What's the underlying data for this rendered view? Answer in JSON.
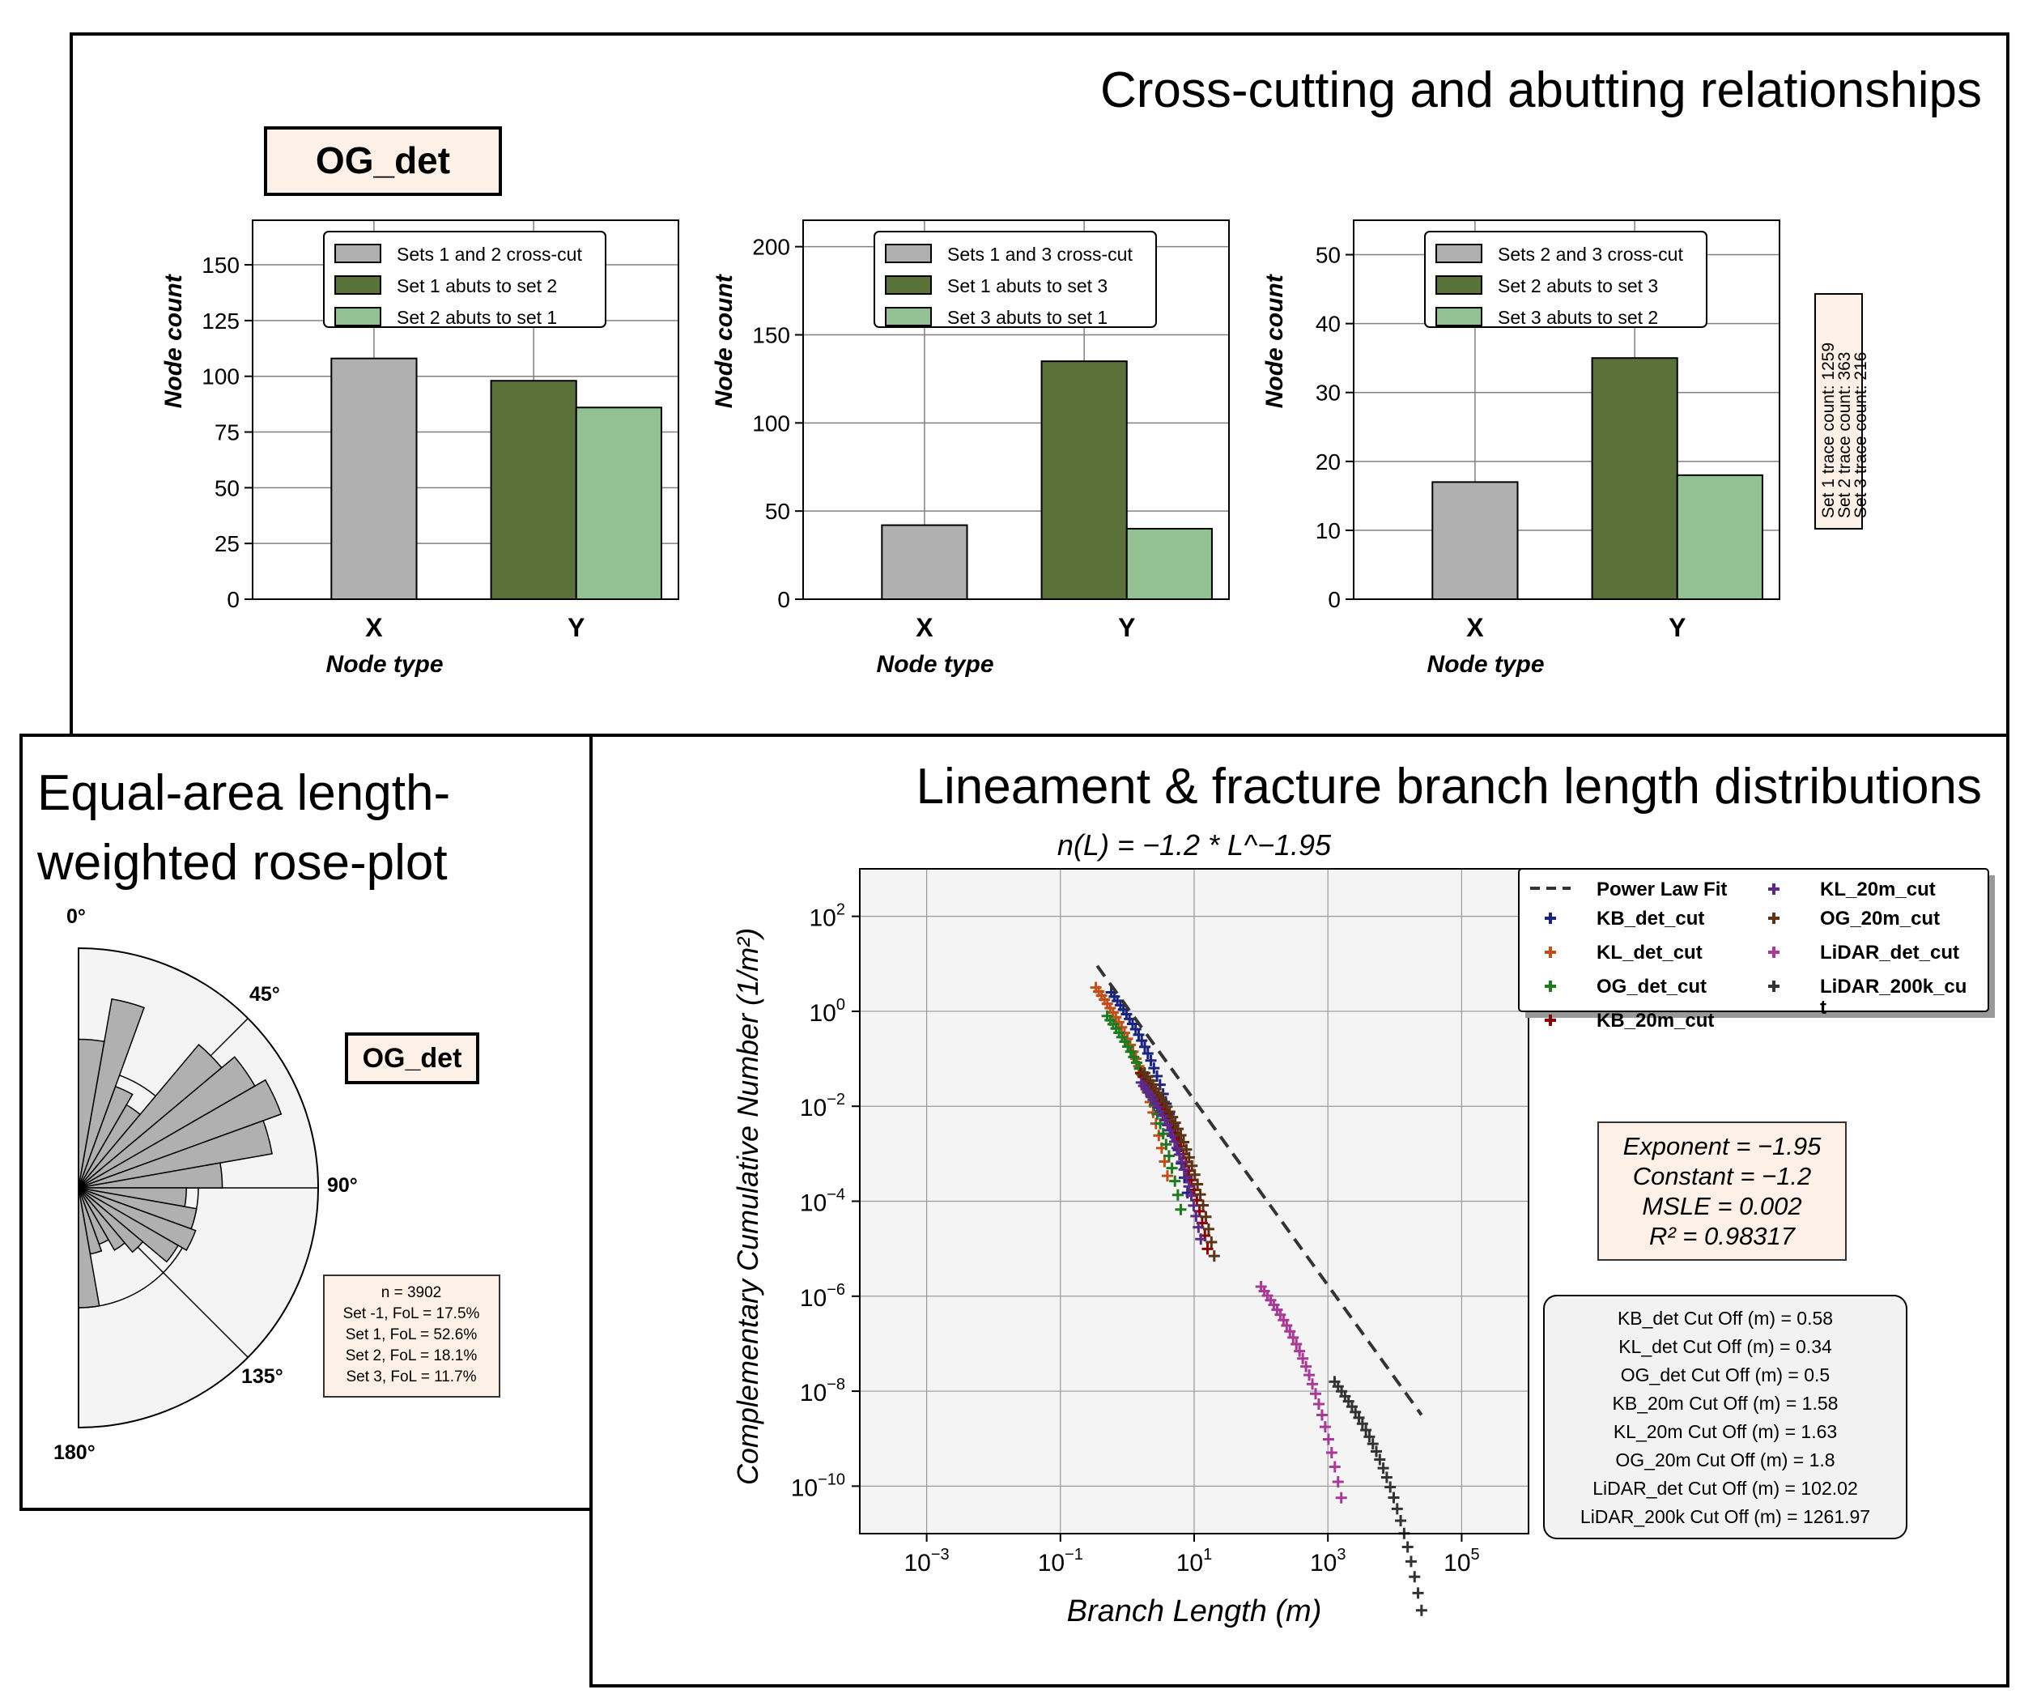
{
  "top_panel": {
    "title": "Cross-cutting and abutting relationships",
    "area_label": "OG_det",
    "trace_counts": [
      "Set 1 trace count: 1259",
      "Set 2 trace count: 363",
      "Set 3 trace count: 216"
    ]
  },
  "rose_panel": {
    "title_line1": "Equal-area length-",
    "title_line2": "weighted rose-plot",
    "area_label": "OG_det",
    "angle_labels": [
      "0°",
      "45°",
      "90°",
      "135°",
      "180°"
    ],
    "stats": [
      "n = 3902",
      "Set -1, FoL = 17.5%",
      "Set 1, FoL = 52.6%",
      "Set 2, FoL = 18.1%",
      "Set 3, FoL = 11.7%"
    ]
  },
  "length_panel": {
    "title": "Lineament & fracture branch length distributions",
    "fit_box": [
      "Exponent = −1.95",
      "Constant = −1.2",
      "MSLE = 0.002",
      "R² = 0.98317"
    ],
    "cutoffs": [
      "KB_det Cut Off (m) = 0.58",
      "KL_det Cut Off (m) = 0.34",
      "OG_det Cut Off (m) = 0.5",
      "KB_20m Cut Off (m) = 1.58",
      "KL_20m Cut Off (m) = 1.63",
      "OG_20m Cut Off (m) = 1.8",
      "LiDAR_det Cut Off (m) = 102.02",
      "LiDAR_200k Cut Off (m) = 1261.97"
    ]
  },
  "chart_data": [
    {
      "type": "bar",
      "ylabel": "Node count",
      "xlabel": "Node type",
      "categories": [
        "X",
        "Y"
      ],
      "ylim": [
        0,
        170
      ],
      "yticks": [
        0,
        25,
        50,
        75,
        100,
        125,
        150
      ],
      "legend_position": "top-center",
      "grid": true,
      "series": [
        {
          "name": "Sets 1 and 2 cross-cut",
          "category": "X",
          "value": 108,
          "color": "#b0b0b0"
        },
        {
          "name": "Set 1 abuts to set 2",
          "category": "Y",
          "value": 98,
          "color": "#5a723a"
        },
        {
          "name": "Set 2 abuts to set 1",
          "category": "Y",
          "value": 86,
          "color": "#93c193"
        }
      ]
    },
    {
      "type": "bar",
      "ylabel": "Node count",
      "xlabel": "Node type",
      "categories": [
        "X",
        "Y"
      ],
      "ylim": [
        0,
        215
      ],
      "yticks": [
        0,
        50,
        100,
        150,
        200
      ],
      "legend_position": "top-center",
      "grid": true,
      "series": [
        {
          "name": "Sets 1 and 3 cross-cut",
          "category": "X",
          "value": 42,
          "color": "#b0b0b0"
        },
        {
          "name": "Set 1 abuts to set 3",
          "category": "Y",
          "value": 135,
          "color": "#5a723a"
        },
        {
          "name": "Set 3 abuts to set 1",
          "category": "Y",
          "value": 40,
          "color": "#93c193"
        }
      ]
    },
    {
      "type": "bar",
      "ylabel": "Node count",
      "xlabel": "Node type",
      "categories": [
        "X",
        "Y"
      ],
      "ylim": [
        0,
        55
      ],
      "yticks": [
        0,
        10,
        20,
        30,
        40,
        50
      ],
      "legend_position": "top-center",
      "grid": true,
      "series": [
        {
          "name": "Sets 2 and 3 cross-cut",
          "category": "X",
          "value": 17,
          "color": "#b0b0b0"
        },
        {
          "name": "Set 2 abuts to set 3",
          "category": "Y",
          "value": 35,
          "color": "#5a723a"
        },
        {
          "name": "Set 3 abuts to set 2",
          "category": "Y",
          "value": 18,
          "color": "#93c193"
        }
      ]
    },
    {
      "type": "bar",
      "subtype": "rose",
      "angle_range_deg": [
        0,
        180
      ],
      "bin_centers_deg": [
        5,
        15,
        25,
        35,
        45,
        55,
        65,
        75,
        85,
        95,
        105,
        115,
        125,
        135,
        145,
        155,
        165,
        175
      ],
      "relative_radius": [
        0.62,
        0.8,
        0.45,
        0.4,
        0.78,
        0.85,
        0.9,
        0.82,
        0.6,
        0.45,
        0.5,
        0.52,
        0.48,
        0.35,
        0.3,
        0.25,
        0.28,
        0.5
      ],
      "color": "#b0b0b0"
    },
    {
      "type": "scatter",
      "subtype": "log-log",
      "title": "n(L) = −1.2 * L^−1.95",
      "xlabel": "Branch Length (m)",
      "ylabel": "Complementary Cumulative Number (1/m²)",
      "xlim_exp": [
        -4,
        6.0
      ],
      "ylim_exp": [
        -11,
        3
      ],
      "xtick_exps": [
        -3,
        -1,
        1,
        3,
        5
      ],
      "ytick_exps": [
        2,
        0,
        -2,
        -4,
        -6,
        -8,
        -10
      ],
      "grid": true,
      "legend_position": "top-right",
      "fit": {
        "name": "Power Law Fit",
        "exponent": -1.95,
        "constant": -1.2,
        "x_range_exp": [
          -0.45,
          4.4
        ]
      },
      "series": [
        {
          "name": "KB_det_cut",
          "color": "#1a237e",
          "x_range_exp": [
            -0.24,
            0.9
          ],
          "y_start_exp": 0.4
        },
        {
          "name": "KL_det_cut",
          "color": "#c0501a",
          "x_range_exp": [
            -0.47,
            0.6
          ],
          "y_start_exp": 0.5
        },
        {
          "name": "OG_det_cut",
          "color": "#1f7a1f",
          "x_range_exp": [
            -0.3,
            0.8
          ],
          "y_start_exp": -0.1
        },
        {
          "name": "KB_20m_cut",
          "color": "#8b0000",
          "x_range_exp": [
            0.2,
            1.2
          ],
          "y_start_exp": -1.3
        },
        {
          "name": "KL_20m_cut",
          "color": "#5b2a86",
          "x_range_exp": [
            0.21,
            1.1
          ],
          "y_start_exp": -1.5
        },
        {
          "name": "OG_20m_cut",
          "color": "#5c3317",
          "x_range_exp": [
            0.26,
            1.3
          ],
          "y_start_exp": -1.3
        },
        {
          "name": "LiDAR_det_cut",
          "color": "#a63a96",
          "x_range_exp": [
            2.0,
            3.2
          ],
          "y_start_exp": -5.8
        },
        {
          "name": "LiDAR_200k_cut",
          "color": "#333333",
          "x_range_exp": [
            3.1,
            4.4
          ],
          "y_start_exp": -7.8
        }
      ]
    }
  ]
}
